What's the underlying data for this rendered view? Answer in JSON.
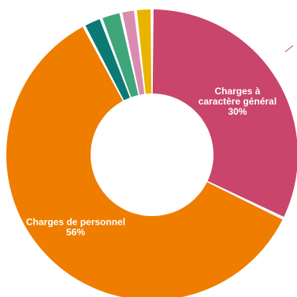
{
  "chart_data": {
    "type": "pie",
    "variant": "donut",
    "title": "",
    "slices": [
      {
        "label": "Charges à caractère général",
        "value": 30,
        "color": "#c9456b",
        "show_label": true,
        "label_lines": [
          "Charges à",
          "caractère général",
          "30%"
        ]
      },
      {
        "label": "Charges de personnel",
        "value": 56,
        "color": "#ef7d00",
        "show_label": true,
        "label_lines": [
          "Charges de personnel",
          "56%"
        ]
      },
      {
        "label": "",
        "value": 1.9,
        "color": "#0b7a75",
        "show_label": false,
        "label_lines": []
      },
      {
        "label": "",
        "value": 2.1,
        "color": "#3fa57a",
        "show_label": false,
        "label_lines": []
      },
      {
        "label": "",
        "value": 1.5,
        "color": "#d98bb0",
        "show_label": false,
        "label_lines": []
      },
      {
        "label": "",
        "value": 1.7,
        "color": "#e8b400",
        "show_label": false,
        "label_lines": []
      }
    ],
    "legend": "none",
    "start_angle_deg": 0,
    "direction": "clockwise"
  }
}
